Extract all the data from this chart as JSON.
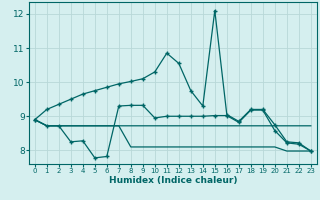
{
  "xlabel": "Humidex (Indice chaleur)",
  "bg_color": "#d5efef",
  "grid_color": "#b8d8d8",
  "line_color": "#006666",
  "xlim": [
    -0.5,
    23.5
  ],
  "ylim": [
    7.6,
    12.35
  ],
  "yticks": [
    8,
    9,
    10,
    11,
    12
  ],
  "xticks": [
    0,
    1,
    2,
    3,
    4,
    5,
    6,
    7,
    8,
    9,
    10,
    11,
    12,
    13,
    14,
    15,
    16,
    17,
    18,
    19,
    20,
    21,
    22,
    23
  ],
  "line1_x": [
    0,
    1,
    2,
    3,
    4,
    5,
    6,
    7,
    8,
    9,
    10,
    11,
    12,
    13,
    14,
    15,
    16,
    17,
    18,
    19,
    20,
    21,
    22,
    23
  ],
  "line1_y": [
    8.9,
    9.2,
    9.35,
    9.5,
    9.65,
    9.75,
    9.85,
    9.95,
    10.02,
    10.1,
    10.3,
    10.85,
    10.55,
    9.75,
    9.3,
    12.1,
    9.05,
    8.85,
    9.2,
    9.2,
    8.75,
    8.25,
    8.22,
    7.98
  ],
  "line2_x": [
    0,
    1,
    2,
    3,
    4,
    5,
    6,
    7,
    8,
    9,
    10,
    11,
    12,
    13,
    14,
    15,
    16,
    17,
    18,
    19,
    20,
    21,
    22,
    23
  ],
  "line2_y": [
    8.9,
    8.72,
    8.72,
    8.25,
    8.28,
    7.78,
    7.82,
    9.3,
    9.32,
    9.32,
    8.95,
    9.0,
    9.0,
    9.0,
    9.0,
    9.02,
    9.02,
    8.82,
    9.18,
    9.18,
    8.58,
    8.22,
    8.18,
    7.98
  ],
  "line3_x": [
    0,
    1,
    2,
    3,
    4,
    5,
    6,
    7,
    8,
    9,
    10,
    11,
    12,
    13,
    14,
    15,
    16,
    17,
    18,
    19,
    20,
    21,
    22,
    23
  ],
  "line3_y": [
    8.9,
    8.72,
    8.72,
    8.72,
    8.72,
    8.72,
    8.72,
    8.72,
    8.1,
    8.1,
    8.1,
    8.1,
    8.1,
    8.1,
    8.1,
    8.1,
    8.1,
    8.1,
    8.1,
    8.1,
    8.1,
    7.98,
    7.98,
    7.98
  ],
  "line4_x": [
    0,
    1,
    2,
    3,
    4,
    5,
    6,
    7,
    8,
    9,
    10,
    11,
    12,
    13,
    14,
    15,
    16,
    17,
    18,
    19,
    20,
    21,
    22,
    23
  ],
  "line4_y": [
    8.9,
    8.72,
    8.72,
    8.72,
    8.72,
    8.72,
    8.72,
    8.72,
    8.72,
    8.72,
    8.72,
    8.72,
    8.72,
    8.72,
    8.72,
    8.72,
    8.72,
    8.72,
    8.72,
    8.72,
    8.72,
    8.72,
    8.72,
    8.72
  ],
  "markersize": 3,
  "linewidth": 0.9
}
